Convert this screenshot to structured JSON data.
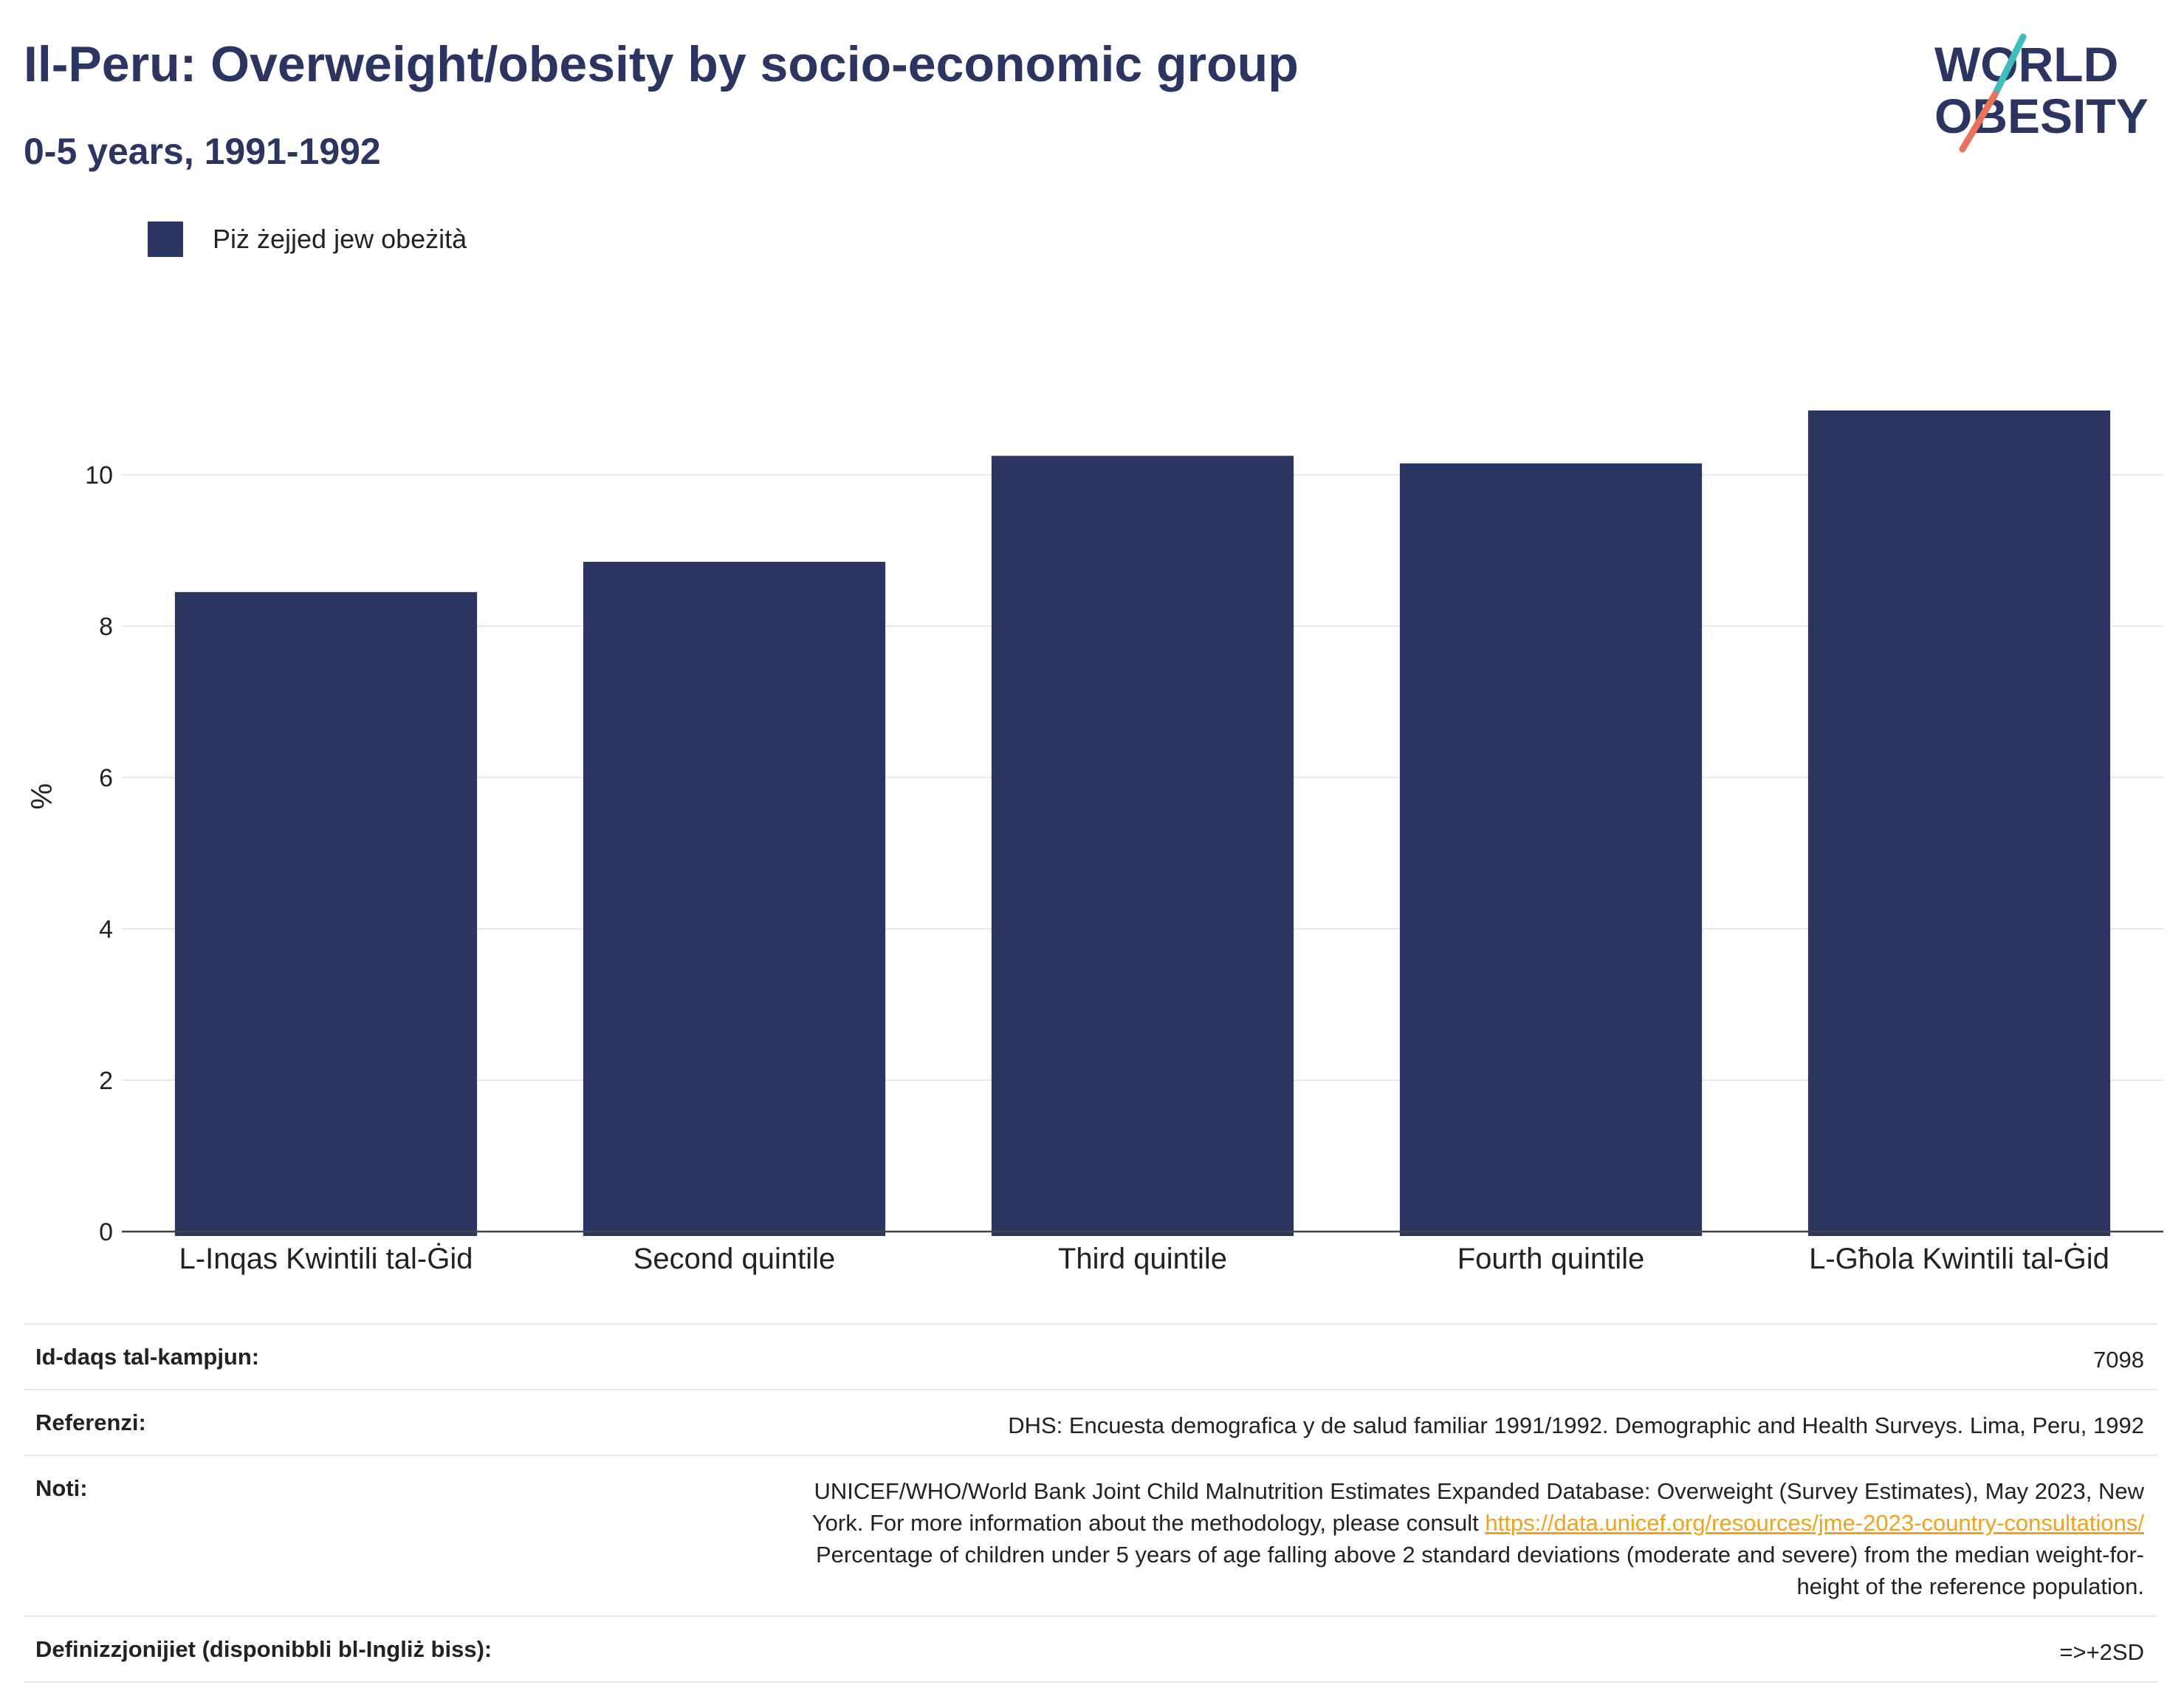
{
  "header": {
    "title": "Il-Peru: Overweight/obesity by socio-economic group",
    "subtitle": "0-5 years, 1991-1992"
  },
  "logo": {
    "line1": "WORLD",
    "line2": "OBESITY",
    "accent_teal": "#3bbfb8",
    "accent_coral": "#e8735a"
  },
  "legend": {
    "items": [
      {
        "label": "Piż żejjed jew obeżità",
        "color": "#2a3561"
      }
    ]
  },
  "chart_data": {
    "type": "bar",
    "categories": [
      "L-Inqas Kwintili tal-Ġid",
      "Second quintile",
      "Third quintile",
      "Fourth quintile",
      "L-Għola Kwintili tal-Ġid"
    ],
    "series": [
      {
        "name": "Piż żejjed jew obeżità",
        "values": [
          8.45,
          8.85,
          10.25,
          10.15,
          10.85
        ],
        "color": "#2a3561"
      }
    ],
    "ylabel": "%",
    "xlabel": "",
    "ylim": [
      0,
      11.5
    ],
    "yticks": [
      0,
      2,
      4,
      6,
      8,
      10
    ],
    "grid": true
  },
  "info": {
    "sample_size_label": "Id-daqs tal-kampjun:",
    "sample_size_value": "7098",
    "references_label": "Referenzi:",
    "references_value": "DHS: Encuesta demografica y de salud familiar 1991/1992. Demographic and Health Surveys. Lima, Peru, 1992",
    "notes_label": "Noti:",
    "notes_line1": "UNICEF/WHO/World Bank Joint Child Malnutrition Estimates Expanded Database: Overweight (Survey Estimates), May 2023, New",
    "notes_line2_prefix": "York. For more information about the methodology, please consult ",
    "notes_link": "https://data.unicef.org/resources/jme-2023-country-consultations/",
    "notes_line3": "Percentage of children under 5 years of age falling above 2 standard deviations (moderate and severe) from the median weight-for-",
    "notes_line4": "height of the reference population.",
    "definitions_label": "Definizzjonijiet (disponibbli bl-Ingliż biss):",
    "definitions_value": "=>+2SD"
  }
}
